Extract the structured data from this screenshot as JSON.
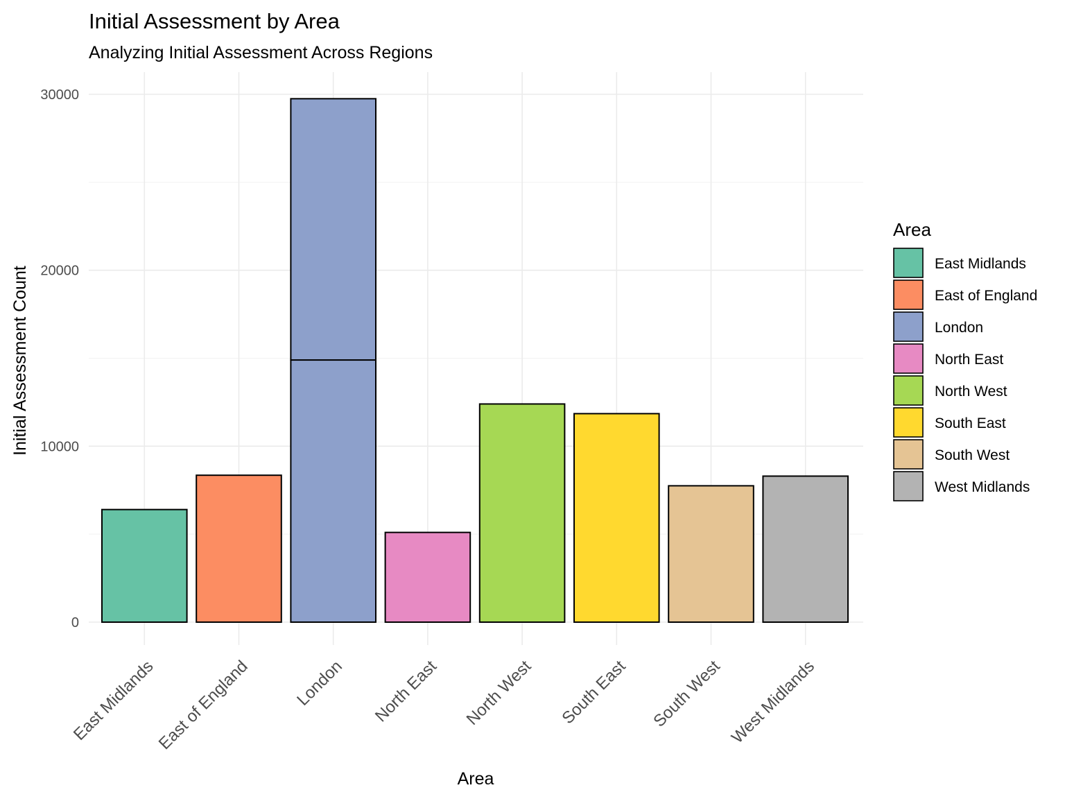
{
  "chart_data": {
    "type": "bar",
    "title": "Initial Assessment by Area",
    "subtitle": "Analyzing Initial Assessment Across Regions",
    "xlabel": "Area",
    "ylabel": "Initial Assessment Count",
    "ylim": [
      0,
      31300
    ],
    "yticks": [
      0,
      10000,
      20000,
      30000
    ],
    "yticklabels": [
      "0",
      "10000",
      "20000",
      "30000"
    ],
    "grid": true,
    "legend_position": "right",
    "legend_title": "Area",
    "categories": [
      "East Midlands",
      "East of England",
      "London",
      "North East",
      "North West",
      "South East",
      "South West",
      "West Midlands"
    ],
    "segments": [
      [
        6400
      ],
      [
        8350
      ],
      [
        14900,
        14850
      ],
      [
        5100
      ],
      [
        12400
      ],
      [
        11850
      ],
      [
        7750
      ],
      [
        8300
      ]
    ],
    "values": [
      6400,
      8350,
      29750,
      5100,
      12400,
      11850,
      7750,
      8300
    ],
    "colors": [
      "#66c2a5",
      "#fc8d62",
      "#8da0cb",
      "#e78ac3",
      "#a6d854",
      "#ffd92f",
      "#e5c494",
      "#b3b3b3"
    ]
  }
}
